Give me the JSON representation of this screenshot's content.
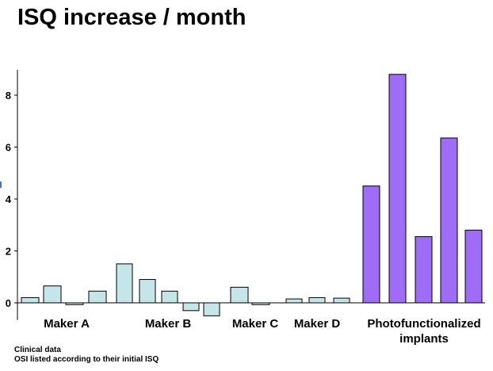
{
  "title": "ISQ increase / month",
  "notes": {
    "line1": "Clinical data",
    "line2": "OSI listed according to their initial ISQ"
  },
  "chart_data": {
    "type": "bar",
    "title": "ISQ increase / month",
    "xlabel": "",
    "ylabel": "",
    "ylim": [
      -0.6,
      9.0
    ],
    "yticks": [
      0,
      2,
      4,
      6,
      8
    ],
    "grid": false,
    "groups": [
      {
        "label": "Maker A",
        "color": "#c5e6e8",
        "values": [
          0.2,
          0.65,
          -0.07,
          0.45
        ]
      },
      {
        "label": "Maker B",
        "color": "#c5e6e8",
        "values": [
          1.5,
          0.9,
          0.45,
          -0.3,
          -0.5
        ]
      },
      {
        "label": "Maker C",
        "color": "#c5e6e8",
        "values": [
          0.6,
          -0.07
        ]
      },
      {
        "label": "Maker D",
        "color": "#c5e6e8",
        "values": [
          0.15,
          0.2,
          0.18
        ]
      },
      {
        "label": "Photofunctionalized implants",
        "color": "#9f6cf7",
        "values": [
          4.5,
          8.8,
          2.55,
          6.35,
          2.8
        ]
      }
    ]
  }
}
